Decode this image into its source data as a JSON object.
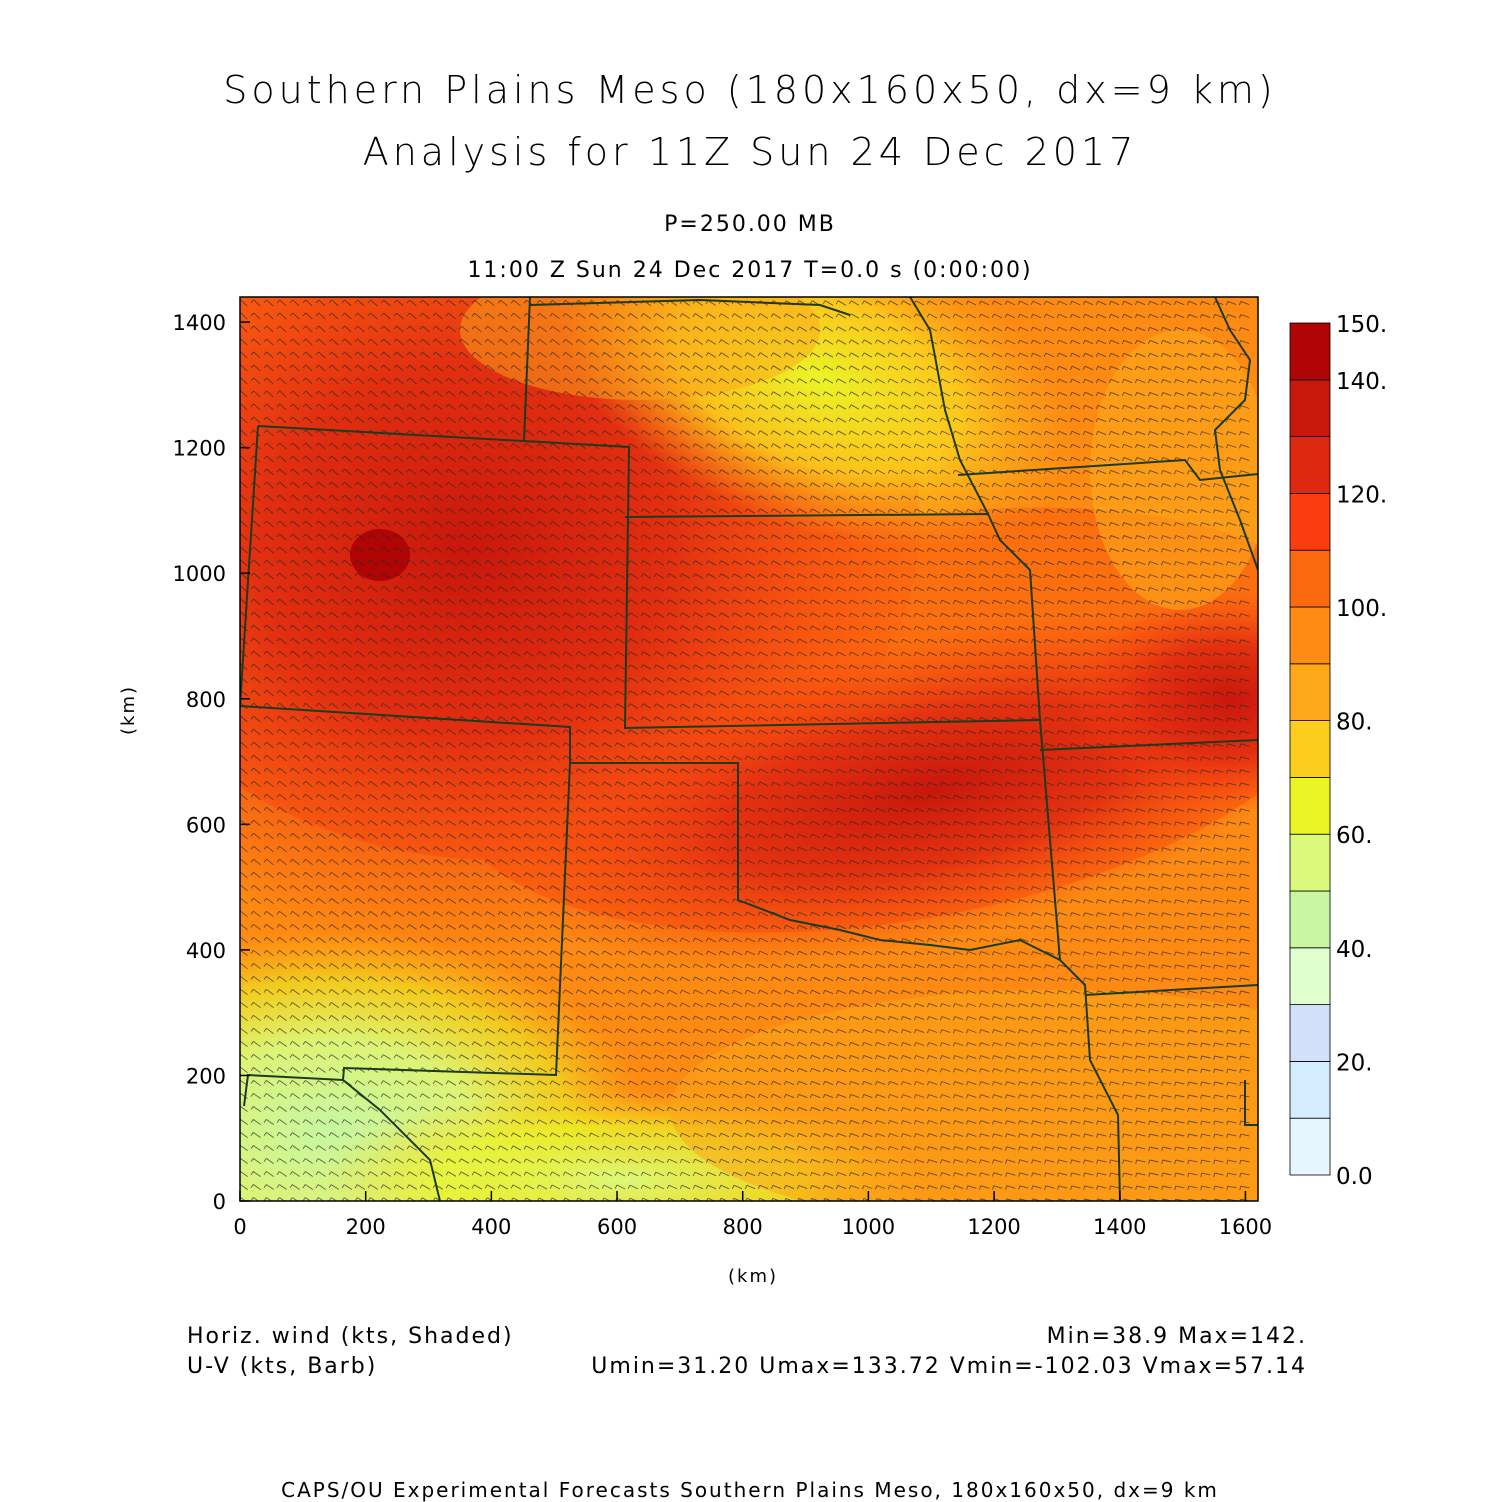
{
  "title_line1": "Southern Plains Meso (180x160x50, dx=9 km)",
  "title_line2": "Analysis for 11Z Sun 24 Dec 2017",
  "level": "P=250.00 MB",
  "valid_time": "11:00 Z Sun 24 Dec 2017    T=0.0 s (0:00:00)",
  "x_axis": {
    "label": "(km)",
    "ticks": [
      0,
      200,
      400,
      600,
      800,
      1000,
      1200,
      1400,
      1600
    ],
    "range": [
      0,
      1620
    ]
  },
  "y_axis": {
    "label": "(km)",
    "ticks": [
      0,
      200,
      400,
      600,
      800,
      1000,
      1200,
      1400
    ],
    "range": [
      0,
      1440
    ]
  },
  "colorbar": {
    "labels": [
      "150.",
      "140.",
      "120.",
      "100.",
      "80.",
      "60.",
      "40.",
      "20.",
      "0.0"
    ],
    "colors": [
      "#e6f6ff",
      "#d4ecff",
      "#d3e0fa",
      "#e0ffcf",
      "#c7f7a1",
      "#dbf97a",
      "#ebf526",
      "#fccd1c",
      "#fca81a",
      "#fd8a12",
      "#fc6a0f",
      "#fa3c10",
      "#df2810",
      "#c8170b",
      "#b10404"
    ]
  },
  "legend": {
    "shaded": "Horiz. wind (kts, Shaded)",
    "barb": "U-V (kts, Barb)",
    "min_max": "Min=38.9 Max=142.",
    "uv_stats": "Umin=31.20 Umax=133.72 Vmin=-102.03 Vmax=57.14"
  },
  "footer": "CAPS/OU Experimental Forecasts  Southern Plains Meso, 180x160x50, dx=9 km"
}
